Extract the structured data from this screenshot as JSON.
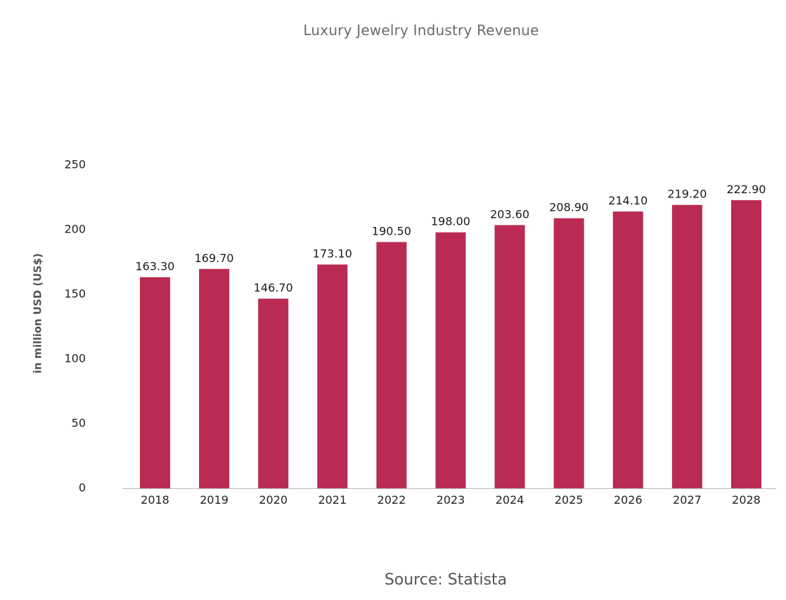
{
  "chart_data": {
    "type": "bar",
    "title": "Luxury Jewelry Industry Revenue",
    "xlabel": "",
    "ylabel": "in million USD (US$)",
    "categories": [
      "2018",
      "2019",
      "2020",
      "2021",
      "2022",
      "2023",
      "2024",
      "2025",
      "2026",
      "2027",
      "2028"
    ],
    "values": [
      163.3,
      169.7,
      146.7,
      173.1,
      190.5,
      198.0,
      203.6,
      208.9,
      214.1,
      219.2,
      222.9
    ],
    "value_labels": [
      "163.30",
      "169.70",
      "146.70",
      "173.10",
      "190.50",
      "198.00",
      "203.60",
      "208.90",
      "214.10",
      "219.20",
      "222.90"
    ],
    "ylim": [
      0,
      250
    ],
    "yticks": [
      0,
      50,
      100,
      150,
      200,
      250
    ],
    "grid": false,
    "legend": "none",
    "bar_color": "#b92b52",
    "axis_color": "#bbbbbb"
  },
  "source": "Source: Statista"
}
